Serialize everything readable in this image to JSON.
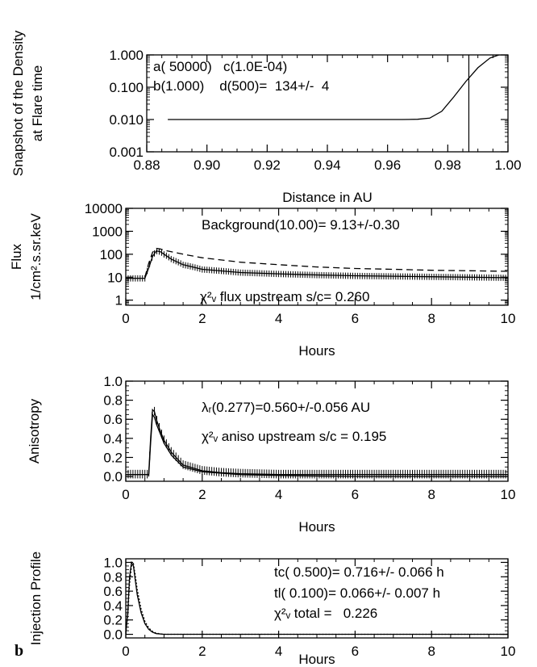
{
  "panel_letter": "b",
  "chart_data": [
    {
      "type": "line",
      "xlabel": "Distance in AU",
      "ylabel_lines": [
        "Snapshot of the Density",
        "at Flare time"
      ],
      "xlim": [
        0.88,
        1.0
      ],
      "ylim": [
        0.001,
        1.0
      ],
      "log_y": true,
      "x_ticks": [
        0.88,
        0.9,
        0.92,
        0.94,
        0.96,
        0.98,
        1.0
      ],
      "x_tick_labels": [
        "0.88",
        "0.90",
        "0.92",
        "0.94",
        "0.96",
        "0.98",
        "1.00"
      ],
      "y_ticks": [
        0.001,
        0.01,
        0.1,
        1.0
      ],
      "y_tick_labels": [
        "0.001",
        "0.010",
        "0.100",
        "1.000"
      ],
      "vline_x": 0.987,
      "series": [
        {
          "style": "solid",
          "x": [
            0.887,
            0.965,
            0.97,
            0.974,
            0.978,
            0.982,
            0.986,
            0.99,
            0.994,
            0.997,
            1.0
          ],
          "y": [
            0.01,
            0.01,
            0.0102,
            0.011,
            0.018,
            0.05,
            0.15,
            0.4,
            0.8,
            1.0,
            1.0
          ]
        }
      ],
      "annotations": [
        "a( 50000)   c(1.0E-04)",
        "b(1.000)    d(500)=  134+/-  4"
      ]
    },
    {
      "type": "line",
      "xlabel": "Hours",
      "ylabel_lines": [
        "Flux",
        "1/cm².s.sr.keV"
      ],
      "xlim": [
        0,
        10
      ],
      "ylim": [
        0.6,
        10000
      ],
      "log_y": true,
      "x_ticks": [
        0,
        2,
        4,
        6,
        8,
        10
      ],
      "x_tick_labels": [
        "0",
        "2",
        "4",
        "6",
        "8",
        "10"
      ],
      "y_ticks": [
        1,
        10,
        100,
        1000,
        10000
      ],
      "y_tick_labels": [
        "1",
        "10",
        "100",
        "1000",
        "10000"
      ],
      "series": [
        {
          "style": "solid",
          "errorbars": true,
          "x": [
            0,
            0.5,
            0.6,
            0.7,
            0.8,
            0.9,
            1.0,
            1.2,
            1.5,
            2,
            3,
            4,
            5,
            6,
            7,
            8,
            9,
            10
          ],
          "y": [
            9,
            9,
            25,
            80,
            140,
            130,
            100,
            60,
            35,
            22,
            16,
            14,
            12.5,
            11.5,
            11,
            10.5,
            10,
            9.5
          ]
        },
        {
          "style": "dashed",
          "x": [
            0.5,
            0.6,
            0.7,
            0.8,
            0.9,
            1.0,
            1.5,
            2,
            3,
            4,
            5,
            6,
            7,
            8,
            9,
            10
          ],
          "y": [
            10,
            40,
            120,
            180,
            170,
            150,
            100,
            70,
            45,
            35,
            28,
            24,
            22,
            20,
            19,
            18
          ]
        }
      ],
      "annotations": [
        "Background(10.00)= 9.13+/-0.30",
        "χ²ᵥ flux upstream s/c= 0.260"
      ]
    },
    {
      "type": "line",
      "xlabel": "Hours",
      "ylabel_lines": [
        "Anisotropy"
      ],
      "xlim": [
        0,
        10
      ],
      "ylim": [
        -0.05,
        1.0
      ],
      "log_y": false,
      "x_ticks": [
        0,
        2,
        4,
        6,
        8,
        10
      ],
      "x_tick_labels": [
        "0",
        "2",
        "4",
        "6",
        "8",
        "10"
      ],
      "y_ticks": [
        0.0,
        0.2,
        0.4,
        0.6,
        0.8,
        1.0
      ],
      "y_tick_labels": [
        "0.0",
        "0.2",
        "0.4",
        "0.6",
        "0.8",
        "1.0"
      ],
      "series": [
        {
          "style": "solid",
          "errorbars": true,
          "x": [
            0,
            0.6,
            0.65,
            0.7,
            0.75,
            0.8,
            0.9,
            1.0,
            1.2,
            1.5,
            2,
            2.5,
            3,
            4,
            6,
            8,
            10
          ],
          "y": [
            0.02,
            0.02,
            0.4,
            0.7,
            0.68,
            0.6,
            0.48,
            0.38,
            0.25,
            0.12,
            0.06,
            0.04,
            0.03,
            0.02,
            0.02,
            0.02,
            0.02
          ]
        },
        {
          "style": "solid",
          "x": [
            0.6,
            0.65,
            0.7,
            0.75,
            0.8,
            0.9,
            1.0,
            1.2,
            1.5,
            2,
            3,
            4,
            6,
            8,
            10
          ],
          "y": [
            0.0,
            0.35,
            0.65,
            0.62,
            0.55,
            0.45,
            0.35,
            0.22,
            0.1,
            0.05,
            0.02,
            0.01,
            0.0,
            0.0,
            0.0
          ]
        }
      ],
      "annotations": [
        "λᵣ(0.277)=0.560+/-0.056 AU",
        "χ²ᵥ aniso upstream s/c = 0.195"
      ]
    },
    {
      "type": "line",
      "xlabel": "Hours",
      "ylabel_lines": [
        "Injection Profile"
      ],
      "xlim": [
        0,
        10
      ],
      "ylim": [
        -0.05,
        1.05
      ],
      "log_y": false,
      "x_ticks": [
        0,
        2,
        4,
        6,
        8,
        10
      ],
      "x_tick_labels": [
        "0",
        "2",
        "4",
        "6",
        "8",
        "10"
      ],
      "y_ticks": [
        0.0,
        0.2,
        0.4,
        0.6,
        0.8,
        1.0
      ],
      "y_tick_labels": [
        "0.0",
        "0.2",
        "0.4",
        "0.6",
        "0.8",
        "1.0"
      ],
      "series": [
        {
          "style": "solid",
          "x": [
            0,
            0.05,
            0.1,
            0.15,
            0.2,
            0.25,
            0.3,
            0.4,
            0.5,
            0.6,
            0.7,
            0.8,
            1.0,
            10
          ],
          "y": [
            0.0,
            0.3,
            0.8,
            1.0,
            0.95,
            0.75,
            0.55,
            0.3,
            0.15,
            0.07,
            0.03,
            0.01,
            0.0,
            0.0
          ]
        },
        {
          "style": "dotted",
          "x": [
            0,
            0.05,
            0.1,
            0.15,
            0.2,
            0.25,
            0.3,
            0.4,
            0.5,
            0.6,
            0.7,
            0.8,
            1.0,
            10
          ],
          "y": [
            0.0,
            0.25,
            0.7,
            0.95,
            0.98,
            0.82,
            0.62,
            0.35,
            0.18,
            0.09,
            0.04,
            0.015,
            0.0,
            0.0
          ]
        }
      ],
      "annotations": [
        "tc( 0.500)= 0.716+/- 0.066 h",
        "tl( 0.100)= 0.066+/- 0.007 h",
        "χ²ᵥ total =   0.226"
      ]
    }
  ]
}
